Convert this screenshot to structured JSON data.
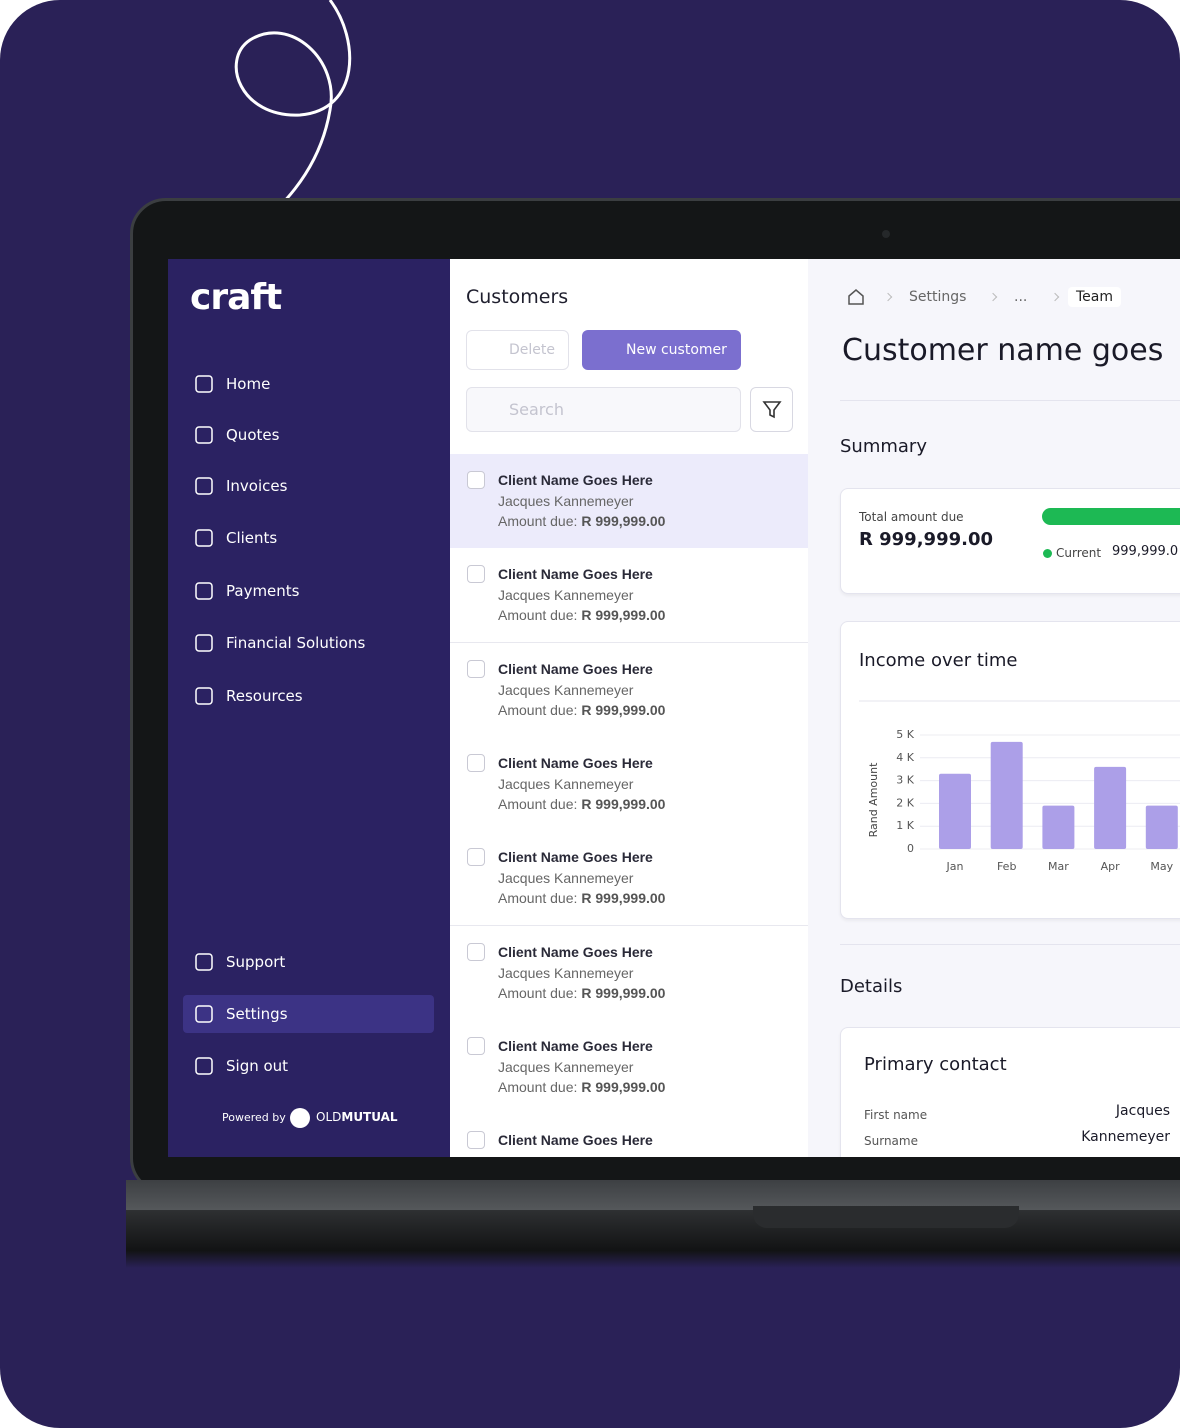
{
  "brand": "craft",
  "nav": [
    "Home",
    "Quotes",
    "Invoices",
    "Clients",
    "Payments",
    "Financial Solutions",
    "Resources"
  ],
  "nav_bottom": [
    "Support",
    "Settings",
    "Sign out"
  ],
  "powered_by": "Powered by",
  "partner": {
    "light": "OLD",
    "bold": "MUTUAL"
  },
  "customers": {
    "title": "Customers",
    "delete": "Delete",
    "new": "New customer",
    "search": "Search",
    "items": [
      {
        "name": "Client Name Goes Here",
        "contact": "Jacques Kannemeyer",
        "amount_label": "Amount due:",
        "amount": "R 999,999.00"
      },
      {
        "name": "Client Name Goes Here",
        "contact": "Jacques Kannemeyer",
        "amount_label": "Amount due:",
        "amount": "R 999,999.00"
      },
      {
        "name": "Client Name Goes Here",
        "contact": "Jacques Kannemeyer",
        "amount_label": "Amount due:",
        "amount": "R 999,999.00"
      },
      {
        "name": "Client Name Goes Here",
        "contact": "Jacques Kannemeyer",
        "amount_label": "Amount due:",
        "amount": "R 999,999.00"
      },
      {
        "name": "Client Name Goes Here",
        "contact": "Jacques Kannemeyer",
        "amount_label": "Amount due:",
        "amount": "R 999,999.00"
      },
      {
        "name": "Client Name Goes Here",
        "contact": "Jacques Kannemeyer",
        "amount_label": "Amount due:",
        "amount": "R 999,999.00"
      },
      {
        "name": "Client Name Goes Here",
        "contact": "Jacques Kannemeyer",
        "amount_label": "Amount due:",
        "amount": "R 999,999.00"
      },
      {
        "name": "Client Name Goes Here"
      }
    ]
  },
  "detail": {
    "breadcrumb": [
      "Settings",
      "...",
      "Team"
    ],
    "title": "Customer name goes",
    "summary": "Summary",
    "total_label": "Total amount due",
    "total": "R 999,999.00",
    "legend": "Current",
    "legend_value": "999,999.0",
    "details": "Details",
    "primary_contact": "Primary contact",
    "fields": [
      {
        "label": "First name",
        "value": "Jacques"
      },
      {
        "label": "Surname",
        "value": "Kannemeyer"
      }
    ]
  },
  "chart_data": {
    "type": "bar",
    "title": "Income over time",
    "y_label": "Rand Amount",
    "categories": [
      "Jan",
      "Feb",
      "Mar",
      "Apr",
      "May"
    ],
    "values": [
      3300,
      4700,
      1900,
      3600,
      1900
    ],
    "color": "#ac9fe8",
    "ylim": [
      0,
      5000
    ],
    "yticks": [
      0,
      {
        "value": 1000,
        "label": "1 K"
      },
      {
        "value": 2000,
        "label": "2 K"
      },
      {
        "value": 3000,
        "label": "3 K"
      },
      {
        "value": 4000,
        "label": "4 K"
      },
      {
        "value": 5000,
        "label": "5 K"
      }
    ],
    "grid": true
  }
}
